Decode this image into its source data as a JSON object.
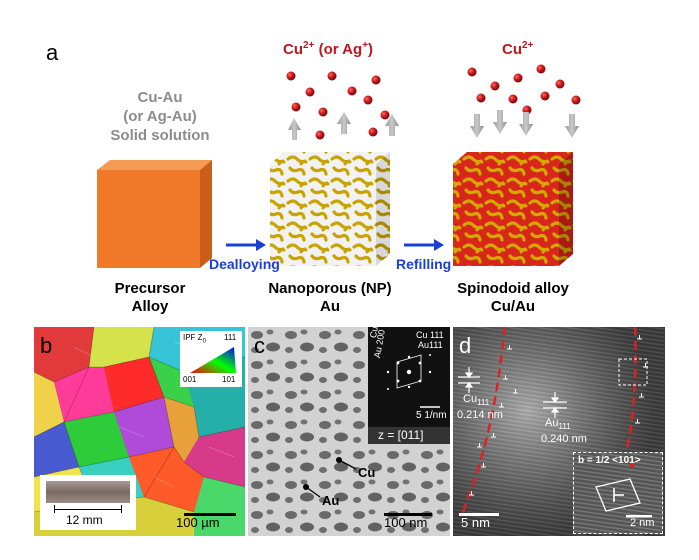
{
  "panel_a": {
    "label": "a",
    "precursor": {
      "top_label_line1": "Cu-Au",
      "top_label_line2": "(or Ag-Au)",
      "top_label_line3": "Solid solution",
      "bottom_line1": "Precursor",
      "bottom_line2": "Alloy",
      "cube_color": "#f07a2a"
    },
    "dealloying": {
      "ion_label_prefix": "Cu",
      "ion_label_charge": "2+",
      "ion_label_mid": " (or Ag",
      "ion_label_charge2": "+",
      "ion_label_suffix": ")",
      "arrow_label": "Dealloying",
      "bottom_line1": "Nanoporous (NP)",
      "bottom_line2": "Au"
    },
    "refilling": {
      "ion_label_prefix": "Cu",
      "ion_label_charge": "2+",
      "arrow_label": "Refilling",
      "bottom_line1": "Spinodoid alloy",
      "bottom_line2": "Cu/Au"
    }
  },
  "panel_b": {
    "label": "b",
    "legend_title": "IPF Z",
    "legend_sub": "0",
    "legend_111": "111",
    "legend_001": "001",
    "legend_101": "101",
    "inset_scale": "12 mm",
    "scale": "100 µm"
  },
  "panel_c": {
    "label": "c",
    "diff_cu200": "Cu 200",
    "diff_au200": "Au 200",
    "diff_cu111": "Cu 111",
    "diff_au111": "Au111",
    "diff_scale": "5 1/nm",
    "zone_axis": "z = [011]",
    "cu_label": "Cu",
    "au_label": "Au",
    "scale": "100 nm"
  },
  "panel_d": {
    "label": "d",
    "cu_plane": "Cu",
    "cu_plane_sub": "111",
    "cu_spacing": "0.214 nm",
    "au_plane": "Au",
    "au_plane_sub": "111",
    "au_spacing": "0.240 nm",
    "burgers": "b = 1/2 <101>",
    "inset_scale": "2 nm",
    "scale": "5 nm"
  }
}
